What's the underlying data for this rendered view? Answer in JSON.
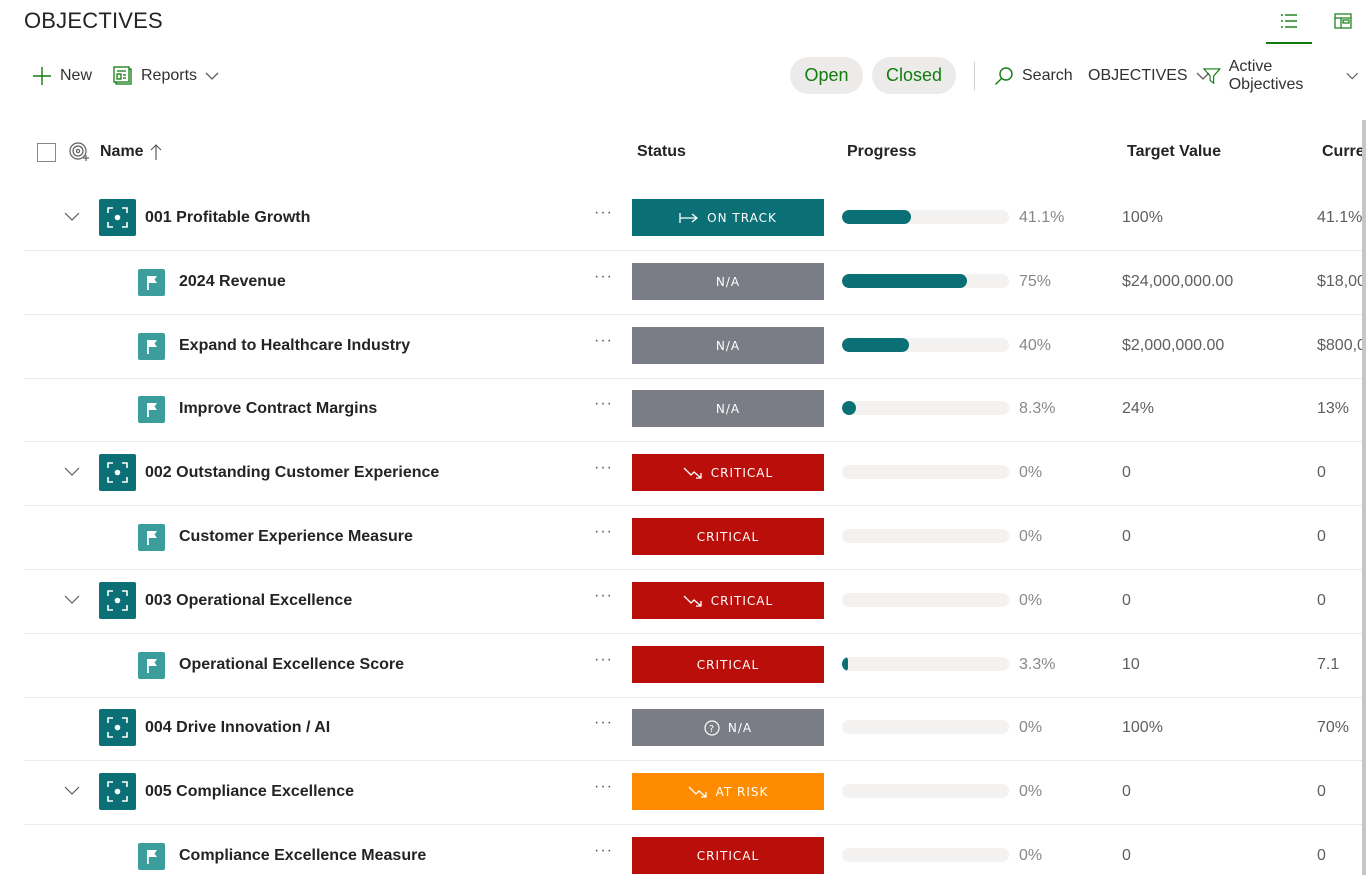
{
  "page": {
    "title": "OBJECTIVES"
  },
  "view_switch": [
    {
      "icon": "list-view-icon",
      "active": true
    },
    {
      "icon": "board-view-icon",
      "active": false
    }
  ],
  "toolbar": {
    "new_label": "New",
    "reports_label": "Reports",
    "open_label": "Open",
    "closed_label": "Closed",
    "search_label": "Search",
    "view_label": "OBJECTIVES",
    "filter_label": "Active Objectives"
  },
  "columns": {
    "name": "Name",
    "status": "Status",
    "progress": "Progress",
    "target": "Target Value",
    "current": "Curre"
  },
  "colors": {
    "teal": "#0b7076",
    "kr_teal": "#3c9e9c",
    "na_gray": "#7a7d85",
    "critical_red": "#b90e0a",
    "at_risk_orange": "#ff8c00",
    "accent_green": "#107c10"
  },
  "rows": [
    {
      "level": 0,
      "expandable": true,
      "name": "001 Profitable Growth",
      "status": "ON TRACK",
      "status_type": "on-track",
      "status_icon": "arrow-right-icon",
      "progress": 0.411,
      "progress_label": "41.1%",
      "target": "100%",
      "current": "41.1%"
    },
    {
      "level": 1,
      "expandable": false,
      "name": "2024 Revenue",
      "status": "N/A",
      "status_type": "na",
      "status_icon": "",
      "progress": 0.75,
      "progress_label": "75%",
      "target": "$24,000,000.00",
      "current": "$18,00"
    },
    {
      "level": 1,
      "expandable": false,
      "name": "Expand to Healthcare Industry",
      "status": "N/A",
      "status_type": "na",
      "status_icon": "",
      "progress": 0.4,
      "progress_label": "40%",
      "target": "$2,000,000.00",
      "current": "$800,0"
    },
    {
      "level": 1,
      "expandable": false,
      "name": "Improve Contract Margins",
      "status": "N/A",
      "status_type": "na",
      "status_icon": "",
      "progress": 0.083,
      "progress_label": "8.3%",
      "target": "24%",
      "current": "13%"
    },
    {
      "level": 0,
      "expandable": true,
      "name": "002 Outstanding Customer Experience",
      "status": "CRITICAL",
      "status_type": "critical",
      "status_icon": "trend-down-icon",
      "progress": 0,
      "progress_label": "0%",
      "target": "0",
      "current": "0"
    },
    {
      "level": 1,
      "expandable": false,
      "name": "Customer Experience Measure",
      "status": "CRITICAL",
      "status_type": "critical",
      "status_icon": "",
      "progress": 0,
      "progress_label": "0%",
      "target": "0",
      "current": "0"
    },
    {
      "level": 0,
      "expandable": true,
      "name": "003 Operational Excellence",
      "status": "CRITICAL",
      "status_type": "critical",
      "status_icon": "trend-down-icon",
      "progress": 0,
      "progress_label": "0%",
      "target": "0",
      "current": "0"
    },
    {
      "level": 1,
      "expandable": false,
      "name": "Operational Excellence Score",
      "status": "CRITICAL",
      "status_type": "critical",
      "status_icon": "",
      "progress": 0.033,
      "progress_label": "3.3%",
      "target": "10",
      "current": "7.1"
    },
    {
      "level": 0,
      "expandable": false,
      "name": "004 Drive Innovation / AI",
      "status": "N/A",
      "status_type": "na",
      "status_icon": "question-circle-icon",
      "progress": 0,
      "progress_label": "0%",
      "target": "100%",
      "current": "70%"
    },
    {
      "level": 0,
      "expandable": true,
      "name": "005 Compliance Excellence",
      "status": "AT RISK",
      "status_type": "at-risk",
      "status_icon": "trend-down-icon",
      "progress": 0,
      "progress_label": "0%",
      "target": "0",
      "current": "0"
    },
    {
      "level": 1,
      "expandable": false,
      "name": "Compliance Excellence Measure",
      "status": "CRITICAL",
      "status_type": "critical",
      "status_icon": "",
      "progress": 0,
      "progress_label": "0%",
      "target": "0",
      "current": "0"
    }
  ]
}
